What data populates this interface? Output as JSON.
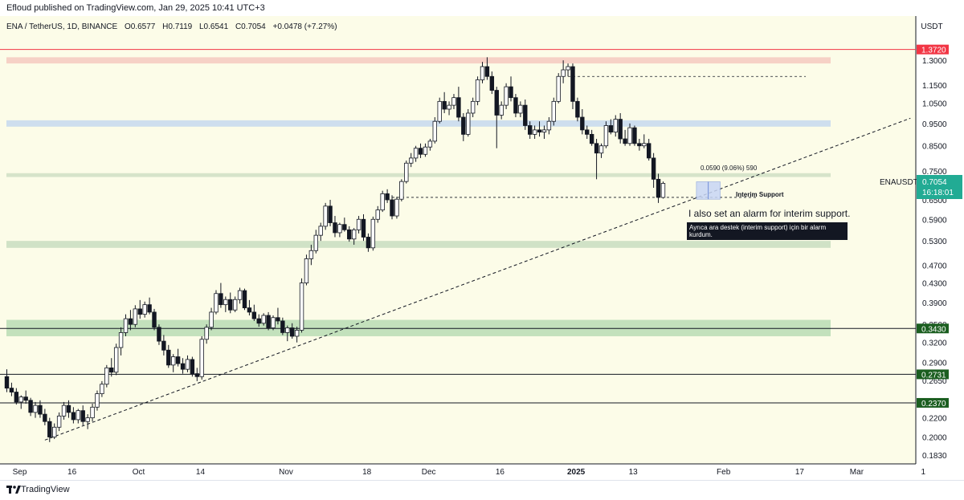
{
  "header": {
    "published": "Efloud published on TradingView.com, Jan 29, 2025 10:41 UTC+3"
  },
  "legend": {
    "symbol": "ENA / TetherUS, 1D, BINANCE",
    "open": "O0.6577",
    "high": "H0.7119",
    "low": "L0.6541",
    "close": "C0.7054",
    "change": "+0.0478 (+7.27%)"
  },
  "axis": {
    "currency": "USDT"
  },
  "chart_data": {
    "type": "candlestick",
    "title": "ENA / TetherUS, 1D, BINANCE",
    "scale": "log",
    "ylim": [
      0.175,
      1.62
    ],
    "y_ticks": [
      "1.3000",
      "1.1500",
      "1.0500",
      "0.9500",
      "0.8500",
      "0.7500",
      "0.6500",
      "0.5900",
      "0.5300",
      "0.4700",
      "0.4300",
      "0.3900",
      "0.3500",
      "0.3200",
      "0.2900",
      "0.2650",
      "0.2400",
      "0.2200",
      "0.2000",
      "0.1830"
    ],
    "x_ticks": [
      {
        "label": "Sep",
        "day": 0,
        "bold": false
      },
      {
        "label": "16",
        "day": 11,
        "bold": false
      },
      {
        "label": "Oct",
        "day": 25,
        "bold": false
      },
      {
        "label": "14",
        "day": 38,
        "bold": false
      },
      {
        "label": "Nov",
        "day": 56,
        "bold": false
      },
      {
        "label": "18",
        "day": 73,
        "bold": false
      },
      {
        "label": "Dec",
        "day": 86,
        "bold": false
      },
      {
        "label": "16",
        "day": 101,
        "bold": false
      },
      {
        "label": "2025",
        "day": 117,
        "bold": true
      },
      {
        "label": "13",
        "day": 129,
        "bold": false
      },
      {
        "label": "Feb",
        "day": 148,
        "bold": false
      },
      {
        "label": "17",
        "day": 164,
        "bold": false
      },
      {
        "label": "Mar",
        "day": 176,
        "bold": false
      },
      {
        "label": "1",
        "day": 190,
        "bold": false
      }
    ],
    "candles_ohlc": [
      [
        0.27,
        0.28,
        0.25,
        0.255
      ],
      [
        0.255,
        0.262,
        0.245,
        0.25
      ],
      [
        0.25,
        0.255,
        0.235,
        0.238
      ],
      [
        0.238,
        0.246,
        0.23,
        0.244
      ],
      [
        0.244,
        0.252,
        0.236,
        0.24
      ],
      [
        0.24,
        0.243,
        0.222,
        0.226
      ],
      [
        0.226,
        0.238,
        0.22,
        0.234
      ],
      [
        0.234,
        0.24,
        0.22,
        0.224
      ],
      [
        0.224,
        0.23,
        0.212,
        0.216
      ],
      [
        0.216,
        0.22,
        0.195,
        0.2
      ],
      [
        0.2,
        0.214,
        0.198,
        0.21
      ],
      [
        0.21,
        0.226,
        0.206,
        0.222
      ],
      [
        0.222,
        0.238,
        0.218,
        0.234
      ],
      [
        0.234,
        0.24,
        0.22,
        0.226
      ],
      [
        0.226,
        0.232,
        0.214,
        0.218
      ],
      [
        0.218,
        0.23,
        0.214,
        0.228
      ],
      [
        0.228,
        0.234,
        0.212,
        0.216
      ],
      [
        0.216,
        0.224,
        0.208,
        0.22
      ],
      [
        0.22,
        0.236,
        0.216,
        0.232
      ],
      [
        0.232,
        0.252,
        0.228,
        0.248
      ],
      [
        0.248,
        0.264,
        0.244,
        0.26
      ],
      [
        0.26,
        0.286,
        0.256,
        0.282
      ],
      [
        0.282,
        0.296,
        0.27,
        0.276
      ],
      [
        0.276,
        0.318,
        0.272,
        0.312
      ],
      [
        0.312,
        0.345,
        0.3,
        0.336
      ],
      [
        0.336,
        0.368,
        0.33,
        0.36
      ],
      [
        0.36,
        0.376,
        0.34,
        0.35
      ],
      [
        0.35,
        0.385,
        0.345,
        0.378
      ],
      [
        0.378,
        0.395,
        0.36,
        0.368
      ],
      [
        0.368,
        0.392,
        0.362,
        0.386
      ],
      [
        0.386,
        0.4,
        0.368,
        0.372
      ],
      [
        0.372,
        0.378,
        0.34,
        0.345
      ],
      [
        0.345,
        0.35,
        0.316,
        0.322
      ],
      [
        0.322,
        0.332,
        0.3,
        0.308
      ],
      [
        0.308,
        0.316,
        0.282,
        0.286
      ],
      [
        0.286,
        0.302,
        0.276,
        0.298
      ],
      [
        0.298,
        0.31,
        0.284,
        0.288
      ],
      [
        0.288,
        0.296,
        0.274,
        0.28
      ],
      [
        0.28,
        0.3,
        0.276,
        0.294
      ],
      [
        0.294,
        0.298,
        0.27,
        0.274
      ],
      [
        0.274,
        0.282,
        0.264,
        0.27
      ],
      [
        0.27,
        0.33,
        0.266,
        0.325
      ],
      [
        0.325,
        0.35,
        0.318,
        0.345
      ],
      [
        0.345,
        0.38,
        0.34,
        0.372
      ],
      [
        0.372,
        0.415,
        0.368,
        0.408
      ],
      [
        0.408,
        0.43,
        0.38,
        0.386
      ],
      [
        0.386,
        0.402,
        0.372,
        0.396
      ],
      [
        0.396,
        0.41,
        0.37,
        0.376
      ],
      [
        0.376,
        0.402,
        0.372,
        0.396
      ],
      [
        0.396,
        0.42,
        0.388,
        0.414
      ],
      [
        0.414,
        0.418,
        0.376,
        0.38
      ],
      [
        0.38,
        0.395,
        0.366,
        0.372
      ],
      [
        0.372,
        0.386,
        0.356,
        0.36
      ],
      [
        0.36,
        0.368,
        0.346,
        0.352
      ],
      [
        0.352,
        0.37,
        0.348,
        0.366
      ],
      [
        0.366,
        0.372,
        0.34,
        0.344
      ],
      [
        0.344,
        0.366,
        0.34,
        0.362
      ],
      [
        0.362,
        0.38,
        0.35,
        0.356
      ],
      [
        0.356,
        0.362,
        0.332,
        0.336
      ],
      [
        0.336,
        0.348,
        0.322,
        0.344
      ],
      [
        0.344,
        0.352,
        0.326,
        0.33
      ],
      [
        0.33,
        0.346,
        0.32,
        0.34
      ],
      [
        0.34,
        0.44,
        0.336,
        0.43
      ],
      [
        0.43,
        0.495,
        0.425,
        0.485
      ],
      [
        0.485,
        0.52,
        0.47,
        0.505
      ],
      [
        0.505,
        0.56,
        0.498,
        0.545
      ],
      [
        0.545,
        0.58,
        0.53,
        0.57
      ],
      [
        0.57,
        0.64,
        0.56,
        0.63
      ],
      [
        0.63,
        0.65,
        0.57,
        0.58
      ],
      [
        0.58,
        0.6,
        0.54,
        0.552
      ],
      [
        0.552,
        0.58,
        0.54,
        0.575
      ],
      [
        0.575,
        0.595,
        0.555,
        0.56
      ],
      [
        0.56,
        0.57,
        0.528,
        0.535
      ],
      [
        0.535,
        0.565,
        0.52,
        0.56
      ],
      [
        0.56,
        0.6,
        0.55,
        0.59
      ],
      [
        0.59,
        0.605,
        0.53,
        0.54
      ],
      [
        0.54,
        0.55,
        0.502,
        0.512
      ],
      [
        0.512,
        0.598,
        0.505,
        0.59
      ],
      [
        0.59,
        0.63,
        0.58,
        0.618
      ],
      [
        0.618,
        0.68,
        0.612,
        0.67
      ],
      [
        0.67,
        0.685,
        0.64,
        0.65
      ],
      [
        0.65,
        0.665,
        0.59,
        0.6
      ],
      [
        0.6,
        0.66,
        0.592,
        0.652
      ],
      [
        0.652,
        0.72,
        0.645,
        0.712
      ],
      [
        0.712,
        0.79,
        0.705,
        0.78
      ],
      [
        0.78,
        0.82,
        0.765,
        0.8
      ],
      [
        0.8,
        0.85,
        0.785,
        0.84
      ],
      [
        0.84,
        0.86,
        0.8,
        0.815
      ],
      [
        0.815,
        0.86,
        0.805,
        0.845
      ],
      [
        0.845,
        0.88,
        0.83,
        0.87
      ],
      [
        0.87,
        0.98,
        0.86,
        0.96
      ],
      [
        0.96,
        1.08,
        0.95,
        1.06
      ],
      [
        1.06,
        1.11,
        1.0,
        1.02
      ],
      [
        1.02,
        1.06,
        0.99,
        1.04
      ],
      [
        1.04,
        1.1,
        1.02,
        1.08
      ],
      [
        1.08,
        1.14,
        0.96,
        0.98
      ],
      [
        0.98,
        1.0,
        0.87,
        0.9
      ],
      [
        0.9,
        1.02,
        0.89,
        1.0
      ],
      [
        1.0,
        1.08,
        0.98,
        1.06
      ],
      [
        1.06,
        1.2,
        1.04,
        1.18
      ],
      [
        1.18,
        1.29,
        1.16,
        1.26
      ],
      [
        1.26,
        1.32,
        1.18,
        1.2
      ],
      [
        1.2,
        1.23,
        1.1,
        1.12
      ],
      [
        1.12,
        1.14,
        0.84,
        0.99
      ],
      [
        0.99,
        1.06,
        0.97,
        1.04
      ],
      [
        1.04,
        1.16,
        1.02,
        1.14
      ],
      [
        1.14,
        1.2,
        1.06,
        1.08
      ],
      [
        1.08,
        1.1,
        0.98,
        1.0
      ],
      [
        1.0,
        1.06,
        0.98,
        1.04
      ],
      [
        1.04,
        1.07,
        0.92,
        0.94
      ],
      [
        0.94,
        0.96,
        0.88,
        0.9
      ],
      [
        0.9,
        0.94,
        0.88,
        0.92
      ],
      [
        0.92,
        0.96,
        0.89,
        0.91
      ],
      [
        0.91,
        0.94,
        0.88,
        0.92
      ],
      [
        0.92,
        0.98,
        0.9,
        0.96
      ],
      [
        0.96,
        1.08,
        0.94,
        1.06
      ],
      [
        1.06,
        1.22,
        1.05,
        1.2
      ],
      [
        1.2,
        1.3,
        1.16,
        1.24
      ],
      [
        1.24,
        1.28,
        1.2,
        1.26
      ],
      [
        1.26,
        1.28,
        1.02,
        1.06
      ],
      [
        1.06,
        1.08,
        0.96,
        0.98
      ],
      [
        0.98,
        1.02,
        0.9,
        0.92
      ],
      [
        0.92,
        0.94,
        0.88,
        0.9
      ],
      [
        0.9,
        0.92,
        0.85,
        0.86
      ],
      [
        0.86,
        0.88,
        0.72,
        0.82
      ],
      [
        0.82,
        0.86,
        0.8,
        0.85
      ],
      [
        0.85,
        0.96,
        0.84,
        0.94
      ],
      [
        0.94,
        0.97,
        0.9,
        0.91
      ],
      [
        0.91,
        0.99,
        0.89,
        0.97
      ],
      [
        0.97,
        1.0,
        0.86,
        0.88
      ],
      [
        0.88,
        0.92,
        0.85,
        0.86
      ],
      [
        0.86,
        0.95,
        0.85,
        0.93
      ],
      [
        0.93,
        0.94,
        0.85,
        0.86
      ],
      [
        0.86,
        0.88,
        0.83,
        0.85
      ],
      [
        0.85,
        0.9,
        0.84,
        0.86
      ],
      [
        0.86,
        0.88,
        0.79,
        0.8
      ],
      [
        0.8,
        0.82,
        0.69,
        0.72
      ],
      [
        0.72,
        0.74,
        0.64,
        0.658
      ],
      [
        0.6577,
        0.7119,
        0.6541,
        0.7054
      ]
    ],
    "zones": [
      {
        "name": "red",
        "low": 1.28,
        "high": 1.32,
        "color": "#f5c9c0"
      },
      {
        "name": "blue",
        "low": 0.935,
        "high": 0.965,
        "color": "#c6d8ee"
      },
      {
        "name": "green-1",
        "low": 0.728,
        "high": 0.742,
        "color": "#cfdfc4"
      },
      {
        "name": "green-2",
        "low": 0.512,
        "high": 0.53,
        "color": "#c8ddc0"
      },
      {
        "name": "green-3",
        "low": 0.33,
        "high": 0.358,
        "color": "#b9dcb4"
      }
    ],
    "horizontal_lines": [
      {
        "value": 1.372,
        "color": "#f23645",
        "label": "1.3720",
        "label_bg": "#f23645"
      },
      {
        "value": 0.343,
        "color": "#131722",
        "label": "0.3430",
        "label_bg": "#1b5e20"
      },
      {
        "value": 0.2731,
        "color": "#131722",
        "label": "0.2731",
        "label_bg": "#1b5e20"
      },
      {
        "value": 0.237,
        "color": "#131722",
        "label": "0.2370",
        "label_bg": "#1b5e20"
      }
    ],
    "dashed_levels": [
      {
        "value": 1.2,
        "from_day": 118,
        "to_day": 168
      },
      {
        "value": 0.658,
        "from_day": 81,
        "to_day": 158
      }
    ],
    "trendline": {
      "from_day": 8,
      "from_value": 0.197,
      "to_day": 190,
      "to_value": 0.975
    },
    "price_label": {
      "symbol": "ENAUSDT",
      "price": "0.7054",
      "countdown": "16:18:01",
      "bg": "#22ab94"
    },
    "measure": {
      "text": "0.0590 (9.06%) 590",
      "from_day": 145,
      "to_day": 150,
      "low": 0.652,
      "high": 0.711
    },
    "annotations": [
      {
        "text": "Interim Support"
      },
      {
        "text": "I also set an alarm for interim support."
      },
      {
        "text": "Ayrıca ara destek (interim support) için bir alarm kurdum."
      }
    ],
    "colors": {
      "up": "#ffffff",
      "down": "#131722",
      "background": "#fcfce8"
    }
  },
  "footer": {
    "brand": "TradingView"
  }
}
